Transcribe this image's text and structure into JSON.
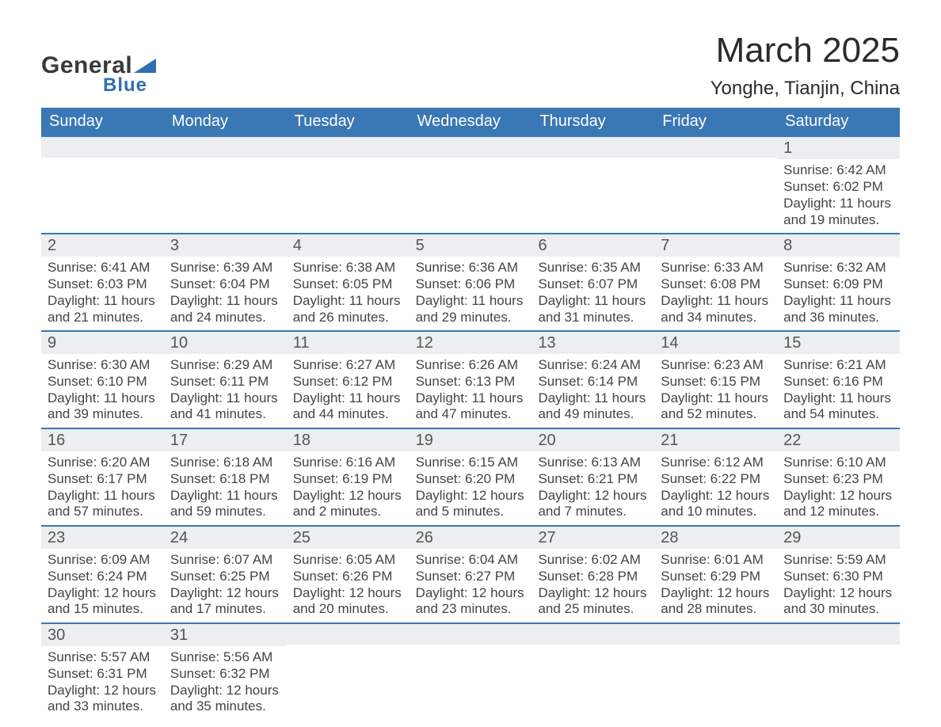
{
  "logo": {
    "line1": "General",
    "line2": "Blue",
    "shape_color": "#2f6fb0",
    "text1_color": "#3a3a3a",
    "text2_color": "#2f6fb0"
  },
  "title": "March 2025",
  "location": "Yonghe, Tianjin, China",
  "colors": {
    "header_bg": "#3a77b5",
    "header_text": "#ffffff",
    "daynum_bg": "#eceeef",
    "daynum_text": "#555555",
    "body_text": "#444444",
    "row_border": "#3a77b5",
    "page_bg": "#ffffff"
  },
  "fonts": {
    "title_size_pt": 33,
    "location_size_pt": 18,
    "header_size_pt": 15,
    "daynum_size_pt": 15,
    "body_size_pt": 13,
    "family": "Arial"
  },
  "weekday_headers": [
    "Sunday",
    "Monday",
    "Tuesday",
    "Wednesday",
    "Thursday",
    "Friday",
    "Saturday"
  ],
  "weeks": [
    [
      {
        "empty": true
      },
      {
        "empty": true
      },
      {
        "empty": true
      },
      {
        "empty": true
      },
      {
        "empty": true
      },
      {
        "empty": true
      },
      {
        "num": "1",
        "sunrise": "Sunrise: 6:42 AM",
        "sunset": "Sunset: 6:02 PM",
        "daylight1": "Daylight: 11 hours",
        "daylight2": "and 19 minutes."
      }
    ],
    [
      {
        "num": "2",
        "sunrise": "Sunrise: 6:41 AM",
        "sunset": "Sunset: 6:03 PM",
        "daylight1": "Daylight: 11 hours",
        "daylight2": "and 21 minutes."
      },
      {
        "num": "3",
        "sunrise": "Sunrise: 6:39 AM",
        "sunset": "Sunset: 6:04 PM",
        "daylight1": "Daylight: 11 hours",
        "daylight2": "and 24 minutes."
      },
      {
        "num": "4",
        "sunrise": "Sunrise: 6:38 AM",
        "sunset": "Sunset: 6:05 PM",
        "daylight1": "Daylight: 11 hours",
        "daylight2": "and 26 minutes."
      },
      {
        "num": "5",
        "sunrise": "Sunrise: 6:36 AM",
        "sunset": "Sunset: 6:06 PM",
        "daylight1": "Daylight: 11 hours",
        "daylight2": "and 29 minutes."
      },
      {
        "num": "6",
        "sunrise": "Sunrise: 6:35 AM",
        "sunset": "Sunset: 6:07 PM",
        "daylight1": "Daylight: 11 hours",
        "daylight2": "and 31 minutes."
      },
      {
        "num": "7",
        "sunrise": "Sunrise: 6:33 AM",
        "sunset": "Sunset: 6:08 PM",
        "daylight1": "Daylight: 11 hours",
        "daylight2": "and 34 minutes."
      },
      {
        "num": "8",
        "sunrise": "Sunrise: 6:32 AM",
        "sunset": "Sunset: 6:09 PM",
        "daylight1": "Daylight: 11 hours",
        "daylight2": "and 36 minutes."
      }
    ],
    [
      {
        "num": "9",
        "sunrise": "Sunrise: 6:30 AM",
        "sunset": "Sunset: 6:10 PM",
        "daylight1": "Daylight: 11 hours",
        "daylight2": "and 39 minutes."
      },
      {
        "num": "10",
        "sunrise": "Sunrise: 6:29 AM",
        "sunset": "Sunset: 6:11 PM",
        "daylight1": "Daylight: 11 hours",
        "daylight2": "and 41 minutes."
      },
      {
        "num": "11",
        "sunrise": "Sunrise: 6:27 AM",
        "sunset": "Sunset: 6:12 PM",
        "daylight1": "Daylight: 11 hours",
        "daylight2": "and 44 minutes."
      },
      {
        "num": "12",
        "sunrise": "Sunrise: 6:26 AM",
        "sunset": "Sunset: 6:13 PM",
        "daylight1": "Daylight: 11 hours",
        "daylight2": "and 47 minutes."
      },
      {
        "num": "13",
        "sunrise": "Sunrise: 6:24 AM",
        "sunset": "Sunset: 6:14 PM",
        "daylight1": "Daylight: 11 hours",
        "daylight2": "and 49 minutes."
      },
      {
        "num": "14",
        "sunrise": "Sunrise: 6:23 AM",
        "sunset": "Sunset: 6:15 PM",
        "daylight1": "Daylight: 11 hours",
        "daylight2": "and 52 minutes."
      },
      {
        "num": "15",
        "sunrise": "Sunrise: 6:21 AM",
        "sunset": "Sunset: 6:16 PM",
        "daylight1": "Daylight: 11 hours",
        "daylight2": "and 54 minutes."
      }
    ],
    [
      {
        "num": "16",
        "sunrise": "Sunrise: 6:20 AM",
        "sunset": "Sunset: 6:17 PM",
        "daylight1": "Daylight: 11 hours",
        "daylight2": "and 57 minutes."
      },
      {
        "num": "17",
        "sunrise": "Sunrise: 6:18 AM",
        "sunset": "Sunset: 6:18 PM",
        "daylight1": "Daylight: 11 hours",
        "daylight2": "and 59 minutes."
      },
      {
        "num": "18",
        "sunrise": "Sunrise: 6:16 AM",
        "sunset": "Sunset: 6:19 PM",
        "daylight1": "Daylight: 12 hours",
        "daylight2": "and 2 minutes."
      },
      {
        "num": "19",
        "sunrise": "Sunrise: 6:15 AM",
        "sunset": "Sunset: 6:20 PM",
        "daylight1": "Daylight: 12 hours",
        "daylight2": "and 5 minutes."
      },
      {
        "num": "20",
        "sunrise": "Sunrise: 6:13 AM",
        "sunset": "Sunset: 6:21 PM",
        "daylight1": "Daylight: 12 hours",
        "daylight2": "and 7 minutes."
      },
      {
        "num": "21",
        "sunrise": "Sunrise: 6:12 AM",
        "sunset": "Sunset: 6:22 PM",
        "daylight1": "Daylight: 12 hours",
        "daylight2": "and 10 minutes."
      },
      {
        "num": "22",
        "sunrise": "Sunrise: 6:10 AM",
        "sunset": "Sunset: 6:23 PM",
        "daylight1": "Daylight: 12 hours",
        "daylight2": "and 12 minutes."
      }
    ],
    [
      {
        "num": "23",
        "sunrise": "Sunrise: 6:09 AM",
        "sunset": "Sunset: 6:24 PM",
        "daylight1": "Daylight: 12 hours",
        "daylight2": "and 15 minutes."
      },
      {
        "num": "24",
        "sunrise": "Sunrise: 6:07 AM",
        "sunset": "Sunset: 6:25 PM",
        "daylight1": "Daylight: 12 hours",
        "daylight2": "and 17 minutes."
      },
      {
        "num": "25",
        "sunrise": "Sunrise: 6:05 AM",
        "sunset": "Sunset: 6:26 PM",
        "daylight1": "Daylight: 12 hours",
        "daylight2": "and 20 minutes."
      },
      {
        "num": "26",
        "sunrise": "Sunrise: 6:04 AM",
        "sunset": "Sunset: 6:27 PM",
        "daylight1": "Daylight: 12 hours",
        "daylight2": "and 23 minutes."
      },
      {
        "num": "27",
        "sunrise": "Sunrise: 6:02 AM",
        "sunset": "Sunset: 6:28 PM",
        "daylight1": "Daylight: 12 hours",
        "daylight2": "and 25 minutes."
      },
      {
        "num": "28",
        "sunrise": "Sunrise: 6:01 AM",
        "sunset": "Sunset: 6:29 PM",
        "daylight1": "Daylight: 12 hours",
        "daylight2": "and 28 minutes."
      },
      {
        "num": "29",
        "sunrise": "Sunrise: 5:59 AM",
        "sunset": "Sunset: 6:30 PM",
        "daylight1": "Daylight: 12 hours",
        "daylight2": "and 30 minutes."
      }
    ],
    [
      {
        "num": "30",
        "sunrise": "Sunrise: 5:57 AM",
        "sunset": "Sunset: 6:31 PM",
        "daylight1": "Daylight: 12 hours",
        "daylight2": "and 33 minutes."
      },
      {
        "num": "31",
        "sunrise": "Sunrise: 5:56 AM",
        "sunset": "Sunset: 6:32 PM",
        "daylight1": "Daylight: 12 hours",
        "daylight2": "and 35 minutes."
      },
      {
        "empty": true
      },
      {
        "empty": true
      },
      {
        "empty": true
      },
      {
        "empty": true
      },
      {
        "empty": true
      }
    ]
  ]
}
